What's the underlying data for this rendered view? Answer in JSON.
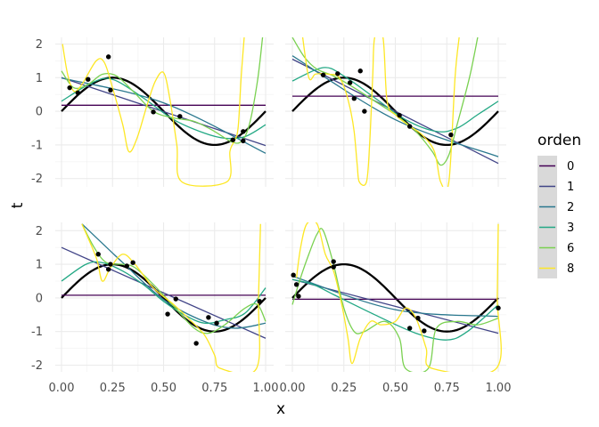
{
  "chart_data": {
    "type": "line",
    "xlabel": "x",
    "ylabel": "t",
    "xlim": [
      0,
      1
    ],
    "ylim": [
      -2.1,
      2.2
    ],
    "x_ticks": [
      "0.00",
      "0.25",
      "0.50",
      "0.75",
      "1.00"
    ],
    "y_ticks": [
      "-2",
      "-1",
      "0",
      "1",
      "2"
    ],
    "x_tick_values": [
      0,
      0.25,
      0.5,
      0.75,
      1
    ],
    "y_tick_values": [
      -2,
      -1,
      0,
      1,
      2
    ],
    "grid": true,
    "true_curve": {
      "function": "sin(2*pi*x)",
      "color": "#000000"
    },
    "legend": {
      "title": "orden",
      "placement": "right",
      "entries": [
        {
          "label": "0",
          "color": "#440154"
        },
        {
          "label": "1",
          "color": "#414487"
        },
        {
          "label": "2",
          "color": "#2A788E"
        },
        {
          "label": "3",
          "color": "#22A884"
        },
        {
          "label": "6",
          "color": "#7AD151"
        },
        {
          "label": "8",
          "color": "#FDE725"
        }
      ]
    },
    "panels": [
      {
        "points": [
          [
            0.04,
            0.7
          ],
          [
            0.08,
            0.55
          ],
          [
            0.13,
            0.95
          ],
          [
            0.23,
            1.62
          ],
          [
            0.24,
            0.63
          ],
          [
            0.45,
            -0.02
          ],
          [
            0.58,
            -0.15
          ],
          [
            0.84,
            -0.85
          ],
          [
            0.89,
            -0.6
          ],
          [
            0.89,
            -0.88
          ]
        ],
        "fits": {
          "0": [
            [
              0,
              0.18
            ],
            [
              1,
              0.18
            ]
          ],
          "1": [
            [
              0,
              1.0
            ],
            [
              1,
              -1.02
            ]
          ],
          "2": [
            [
              0,
              0.99
            ],
            [
              0.5,
              0.25
            ],
            [
              1,
              -1.25
            ]
          ],
          "3": [
            [
              0,
              0.3
            ],
            [
              0.15,
              0.85
            ],
            [
              0.25,
              0.95
            ],
            [
              0.4,
              0.4
            ],
            [
              0.55,
              -0.25
            ],
            [
              0.7,
              -0.65
            ],
            [
              0.8,
              -0.8
            ],
            [
              0.9,
              -0.75
            ],
            [
              1,
              -0.4
            ]
          ],
          "6": [
            [
              0,
              1.2
            ],
            [
              0.06,
              0.7
            ],
            [
              0.13,
              0.8
            ],
            [
              0.2,
              1.1
            ],
            [
              0.27,
              1.05
            ],
            [
              0.35,
              0.6
            ],
            [
              0.45,
              0.0
            ],
            [
              0.55,
              -0.2
            ],
            [
              0.65,
              -0.3
            ],
            [
              0.75,
              -0.6
            ],
            [
              0.83,
              -0.9
            ],
            [
              0.88,
              -0.9
            ],
            [
              0.92,
              -0.4
            ],
            [
              0.96,
              0.9
            ],
            [
              0.985,
              2.2
            ]
          ],
          "8": [
            [
              0.005,
              2.0
            ],
            [
              0.03,
              1.1
            ],
            [
              0.06,
              0.6
            ],
            [
              0.1,
              0.8
            ],
            [
              0.17,
              1.5
            ],
            [
              0.21,
              1.45
            ],
            [
              0.25,
              0.7
            ],
            [
              0.3,
              -0.4
            ],
            [
              0.33,
              -1.2
            ],
            [
              0.37,
              -0.8
            ],
            [
              0.42,
              0.2
            ],
            [
              0.46,
              0.9
            ],
            [
              0.5,
              1.15
            ],
            [
              0.53,
              0.4
            ],
            [
              0.565,
              -1.0
            ],
            [
              0.59,
              -2.1
            ],
            [
              0.81,
              -2.1
            ],
            [
              0.825,
              -1.2
            ],
            [
              0.845,
              -0.9
            ],
            [
              0.865,
              -0.5
            ],
            [
              0.88,
              1.0
            ],
            [
              0.895,
              2.2
            ]
          ]
        }
      },
      {
        "points": [
          [
            0.15,
            1.08
          ],
          [
            0.22,
            1.12
          ],
          [
            0.28,
            0.85
          ],
          [
            0.33,
            1.2
          ],
          [
            0.3,
            0.38
          ],
          [
            0.35,
            0.0
          ],
          [
            0.52,
            -0.12
          ],
          [
            0.57,
            -0.45
          ],
          [
            0.77,
            -0.7
          ]
        ],
        "fits": {
          "0": [
            [
              0,
              0.45
            ],
            [
              1,
              0.45
            ]
          ],
          "1": [
            [
              0,
              1.55
            ],
            [
              1,
              -1.55
            ]
          ],
          "2": [
            [
              0,
              1.65
            ],
            [
              0.5,
              -0.25
            ],
            [
              1,
              -1.35
            ]
          ],
          "3": [
            [
              0,
              0.9
            ],
            [
              0.15,
              1.3
            ],
            [
              0.25,
              1.05
            ],
            [
              0.4,
              0.4
            ],
            [
              0.55,
              -0.25
            ],
            [
              0.7,
              -0.6
            ],
            [
              0.8,
              -0.5
            ],
            [
              0.9,
              -0.1
            ],
            [
              1,
              0.3
            ]
          ],
          "6": [
            [
              0,
              2.2
            ],
            [
              0.06,
              1.6
            ],
            [
              0.12,
              1.25
            ],
            [
              0.2,
              1.05
            ],
            [
              0.3,
              0.7
            ],
            [
              0.4,
              0.3
            ],
            [
              0.5,
              -0.1
            ],
            [
              0.6,
              -0.6
            ],
            [
              0.68,
              -1.2
            ],
            [
              0.72,
              -1.6
            ],
            [
              0.76,
              -1.3
            ],
            [
              0.8,
              -0.4
            ],
            [
              0.86,
              1.0
            ],
            [
              0.9,
              2.2
            ]
          ],
          "8": [
            [
              0.05,
              2.2
            ],
            [
              0.08,
              1.0
            ],
            [
              0.11,
              1.1
            ],
            [
              0.14,
              1.12
            ],
            [
              0.18,
              1.1
            ],
            [
              0.22,
              1.05
            ],
            [
              0.25,
              0.75
            ],
            [
              0.28,
              0.1
            ],
            [
              0.3,
              -0.6
            ],
            [
              0.315,
              -1.6
            ],
            [
              0.325,
              -2.1
            ],
            [
              0.36,
              -2.1
            ],
            [
              0.375,
              -1.0
            ],
            [
              0.39,
              1.0
            ],
            [
              0.4,
              2.2
            ],
            [
              0.44,
              2.2
            ],
            [
              0.46,
              0.3
            ],
            [
              0.5,
              -0.1
            ],
            [
              0.56,
              -0.4
            ],
            [
              0.63,
              -0.7
            ],
            [
              0.69,
              -1.2
            ],
            [
              0.72,
              -2.1
            ],
            [
              0.76,
              -2.1
            ],
            [
              0.79,
              1.0
            ],
            [
              0.81,
              2.2
            ]
          ]
        }
      },
      {
        "points": [
          [
            0.18,
            1.3
          ],
          [
            0.23,
            0.85
          ],
          [
            0.24,
            1.0
          ],
          [
            0.32,
            0.95
          ],
          [
            0.35,
            1.05
          ],
          [
            0.52,
            -0.48
          ],
          [
            0.56,
            -0.03
          ],
          [
            0.66,
            -1.35
          ],
          [
            0.72,
            -0.58
          ],
          [
            0.76,
            -0.75
          ],
          [
            0.97,
            -0.1
          ]
        ],
        "fits": {
          "0": [
            [
              0,
              0.08
            ],
            [
              1,
              0.08
            ]
          ],
          "1": [
            [
              0,
              1.5
            ],
            [
              1,
              -1.2
            ]
          ],
          "2": [
            [
              0.1,
              2.2
            ],
            [
              0.3,
              1.05
            ],
            [
              0.5,
              -0.05
            ],
            [
              0.7,
              -0.7
            ],
            [
              0.85,
              -0.9
            ],
            [
              1,
              -0.75
            ]
          ],
          "3": [
            [
              0,
              0.5
            ],
            [
              0.12,
              1.0
            ],
            [
              0.2,
              1.05
            ],
            [
              0.3,
              0.8
            ],
            [
              0.4,
              0.4
            ],
            [
              0.5,
              -0.1
            ],
            [
              0.6,
              -0.5
            ],
            [
              0.7,
              -0.75
            ],
            [
              0.8,
              -0.65
            ],
            [
              0.9,
              -0.45
            ],
            [
              1,
              0.3
            ]
          ],
          "6": [
            [
              0.1,
              2.2
            ],
            [
              0.16,
              1.5
            ],
            [
              0.22,
              1.05
            ],
            [
              0.3,
              1.0
            ],
            [
              0.36,
              0.9
            ],
            [
              0.45,
              0.4
            ],
            [
              0.55,
              -0.25
            ],
            [
              0.65,
              -0.9
            ],
            [
              0.72,
              -1.05
            ],
            [
              0.8,
              -0.8
            ],
            [
              0.9,
              -0.3
            ],
            [
              0.96,
              -0.2
            ],
            [
              1,
              -0.7
            ]
          ],
          "8": [
            [
              0.1,
              2.2
            ],
            [
              0.17,
              1.2
            ],
            [
              0.2,
              0.5
            ],
            [
              0.24,
              0.9
            ],
            [
              0.3,
              1.3
            ],
            [
              0.36,
              1.0
            ],
            [
              0.45,
              0.3
            ],
            [
              0.55,
              -0.2
            ],
            [
              0.62,
              -0.6
            ],
            [
              0.7,
              -1.1
            ],
            [
              0.75,
              -1.7
            ],
            [
              0.78,
              -2.1
            ],
            [
              0.955,
              -2.1
            ],
            [
              0.965,
              0.0
            ],
            [
              0.975,
              2.2
            ]
          ]
        }
      },
      {
        "points": [
          [
            0.005,
            0.68
          ],
          [
            0.02,
            0.4
          ],
          [
            0.03,
            0.05
          ],
          [
            0.2,
            1.08
          ],
          [
            0.2,
            0.92
          ],
          [
            0.61,
            -0.6
          ],
          [
            0.57,
            -0.9
          ],
          [
            0.64,
            -0.98
          ],
          [
            1.0,
            -0.3
          ]
        ],
        "fits": {
          "0": [
            [
              0,
              -0.04
            ],
            [
              1,
              -0.04
            ]
          ],
          "1": [
            [
              0,
              0.55
            ],
            [
              1,
              -1.05
            ]
          ],
          "2": [
            [
              0,
              0.65
            ],
            [
              0.5,
              -0.35
            ],
            [
              1,
              -0.55
            ]
          ],
          "3": [
            [
              0,
              0.55
            ],
            [
              0.1,
              0.4
            ],
            [
              0.2,
              0.1
            ],
            [
              0.4,
              -0.5
            ],
            [
              0.6,
              -1.05
            ],
            [
              0.75,
              -1.25
            ],
            [
              0.85,
              -1.0
            ],
            [
              1,
              -0.2
            ]
          ],
          "6": [
            [
              0,
              -0.2
            ],
            [
              0.04,
              0.6
            ],
            [
              0.08,
              1.3
            ],
            [
              0.12,
              1.9
            ],
            [
              0.15,
              2.0
            ],
            [
              0.2,
              1.0
            ],
            [
              0.25,
              -0.3
            ],
            [
              0.3,
              -1.0
            ],
            [
              0.35,
              -1.0
            ],
            [
              0.45,
              -0.7
            ],
            [
              0.52,
              -1.2
            ],
            [
              0.55,
              -2.1
            ],
            [
              0.66,
              -2.1
            ],
            [
              0.7,
              -0.9
            ],
            [
              0.8,
              -0.7
            ],
            [
              0.9,
              -0.8
            ],
            [
              1,
              -0.6
            ]
          ],
          "8": [
            [
              0.02,
              0.6
            ],
            [
              0.04,
              1.5
            ],
            [
              0.07,
              2.2
            ],
            [
              0.12,
              2.2
            ],
            [
              0.16,
              1.3
            ],
            [
              0.2,
              0.8
            ],
            [
              0.24,
              -0.2
            ],
            [
              0.27,
              -1.2
            ],
            [
              0.29,
              -1.95
            ],
            [
              0.33,
              -1.2
            ],
            [
              0.38,
              -0.7
            ],
            [
              0.43,
              -0.8
            ],
            [
              0.5,
              -0.7
            ],
            [
              0.55,
              -0.3
            ],
            [
              0.6,
              -0.6
            ],
            [
              0.65,
              -1.5
            ],
            [
              0.68,
              -2.1
            ],
            [
              0.99,
              -2.1
            ],
            [
              0.995,
              0.0
            ],
            [
              1.0,
              2.2
            ]
          ]
        }
      }
    ]
  }
}
